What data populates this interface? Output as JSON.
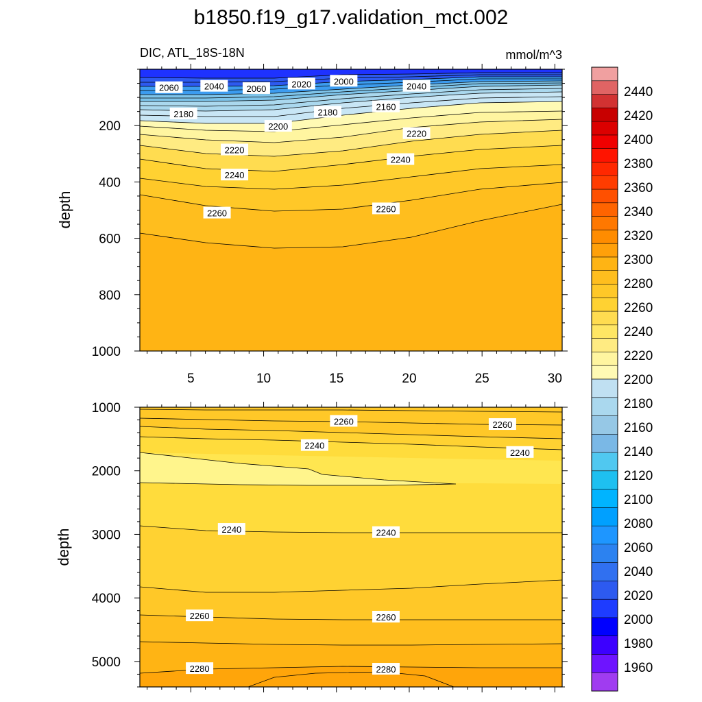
{
  "title": "b1850.f19_g17.validation_mct.002",
  "subtitle_left": "DIC, ATL_18S-18N",
  "subtitle_right": "mmol/m^3",
  "colors": {
    "below_2200": [
      "#a03cf0",
      "#6e14ff",
      "#3c00ff",
      "#0000ff",
      "#1e3cff",
      "#2d5af0",
      "#3070f0",
      "#2c82f0",
      "#1e96ff",
      "#00a0ff",
      "#00b4ff",
      "#1ec0f0",
      "#50c8f0",
      "#7ab8e6",
      "#96c8e6",
      "#aad8ee",
      "#c0e0f2"
    ],
    "above_2200": [
      "#fffab4",
      "#fff5a0",
      "#ffeb82",
      "#ffe664",
      "#ffdc50",
      "#ffd232",
      "#ffc828",
      "#ffbe1e",
      "#ffb414",
      "#ffa00a",
      "#ff8c00",
      "#ff7800",
      "#ff6400",
      "#ff5000",
      "#ff3c00",
      "#ff2800",
      "#ff1400",
      "#f00000",
      "#dc0000",
      "#c80000",
      "#d23232",
      "#e06464",
      "#f0a0a0"
    ]
  },
  "chart_data": [
    {
      "type": "contour",
      "panel": "upper",
      "xlabel": "",
      "ylabel": "depth",
      "xlim": [
        1.5,
        30.5
      ],
      "ylim": [
        1000,
        0
      ],
      "x_ticks": [
        "5",
        "10",
        "15",
        "20",
        "25",
        "30"
      ],
      "y_ticks": [
        "200",
        "400",
        "600",
        "800",
        "1000"
      ],
      "contour_labels": [
        {
          "text": "2060",
          "x": 3.5,
          "y": 65
        },
        {
          "text": "2040",
          "x": 6.6,
          "y": 60
        },
        {
          "text": "2060",
          "x": 9.5,
          "y": 68
        },
        {
          "text": "2020",
          "x": 12.6,
          "y": 52
        },
        {
          "text": "2000",
          "x": 15.5,
          "y": 42
        },
        {
          "text": "2040",
          "x": 20.5,
          "y": 60
        },
        {
          "text": "2180",
          "x": 4.5,
          "y": 158
        },
        {
          "text": "2180",
          "x": 14.4,
          "y": 152
        },
        {
          "text": "2160",
          "x": 18.4,
          "y": 133
        },
        {
          "text": "2200",
          "x": 11.0,
          "y": 202
        },
        {
          "text": "2220",
          "x": 20.5,
          "y": 228
        },
        {
          "text": "2220",
          "x": 8.0,
          "y": 286
        },
        {
          "text": "2240",
          "x": 19.4,
          "y": 320
        },
        {
          "text": "2240",
          "x": 8.0,
          "y": 375
        },
        {
          "text": "2260",
          "x": 6.8,
          "y": 510
        },
        {
          "text": "2260",
          "x": 18.4,
          "y": 495
        }
      ]
    },
    {
      "type": "contour",
      "panel": "lower",
      "xlabel": "",
      "ylabel": "depth",
      "xlim": [
        1.5,
        30.5
      ],
      "ylim": [
        5400,
        1000
      ],
      "x_ticks": [],
      "y_ticks": [
        "1000",
        "2000",
        "3000",
        "4000",
        "5000"
      ],
      "contour_labels": [
        {
          "text": "2260",
          "x": 15.5,
          "y": 1220
        },
        {
          "text": "2260",
          "x": 26.4,
          "y": 1270
        },
        {
          "text": "2240",
          "x": 13.5,
          "y": 1600
        },
        {
          "text": "2240",
          "x": 27.6,
          "y": 1710
        },
        {
          "text": "2240",
          "x": 7.8,
          "y": 2920
        },
        {
          "text": "2240",
          "x": 18.4,
          "y": 2970
        },
        {
          "text": "2260",
          "x": 5.6,
          "y": 4280
        },
        {
          "text": "2260",
          "x": 18.4,
          "y": 4300
        },
        {
          "text": "2280",
          "x": 5.6,
          "y": 5110
        },
        {
          "text": "2280",
          "x": 18.4,
          "y": 5120
        }
      ]
    },
    {
      "type": "colorbar",
      "levels": [
        "1960",
        "1980",
        "2000",
        "2020",
        "2040",
        "2060",
        "2080",
        "2100",
        "2120",
        "2140",
        "2160",
        "2180",
        "2200",
        "2220",
        "2240",
        "2260",
        "2280",
        "2300",
        "2320",
        "2340",
        "2360",
        "2380",
        "2400",
        "2420",
        "2440"
      ]
    }
  ]
}
